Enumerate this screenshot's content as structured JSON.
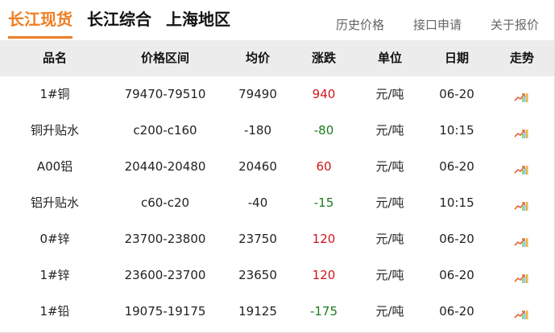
{
  "tabs": [
    {
      "label": "长江现货",
      "active": true
    },
    {
      "label": "长江综合"
    },
    {
      "label": "上海地区"
    }
  ],
  "links": [
    "历史价格",
    "接口申请",
    "关于报价"
  ],
  "columns": [
    "品名",
    "价格区间",
    "均价",
    "涨跌",
    "单位",
    "日期",
    "走势"
  ],
  "colors": {
    "accent": "#ef7d22",
    "up": "#d0161b",
    "down": "#1d7a1d"
  },
  "rows": [
    {
      "name": "1#铜",
      "range": "79470-79510",
      "avg": "79490",
      "change": "940",
      "dir": "up",
      "unit": "元/吨",
      "date": "06-20",
      "trend": "trend-chart-icon"
    },
    {
      "name": "铜升贴水",
      "range": "c200-c160",
      "avg": "-180",
      "change": "-80",
      "dir": "down",
      "unit": "元/吨",
      "date": "10:15",
      "trend": "trend-chart-icon"
    },
    {
      "name": "A00铝",
      "range": "20440-20480",
      "avg": "20460",
      "change": "60",
      "dir": "up",
      "unit": "元/吨",
      "date": "06-20",
      "trend": "trend-chart-icon"
    },
    {
      "name": "铝升贴水",
      "range": "c60-c20",
      "avg": "-40",
      "change": "-15",
      "dir": "down",
      "unit": "元/吨",
      "date": "10:15",
      "trend": "trend-chart-icon"
    },
    {
      "name": "0#锌",
      "range": "23700-23800",
      "avg": "23750",
      "change": "120",
      "dir": "up",
      "unit": "元/吨",
      "date": "06-20",
      "trend": "trend-chart-icon"
    },
    {
      "name": "1#锌",
      "range": "23600-23700",
      "avg": "23650",
      "change": "120",
      "dir": "up",
      "unit": "元/吨",
      "date": "06-20",
      "trend": "trend-chart-icon"
    },
    {
      "name": "1#铅",
      "range": "19075-19175",
      "avg": "19125",
      "change": "-175",
      "dir": "down",
      "unit": "元/吨",
      "date": "06-20",
      "trend": "trend-chart-icon"
    }
  ]
}
